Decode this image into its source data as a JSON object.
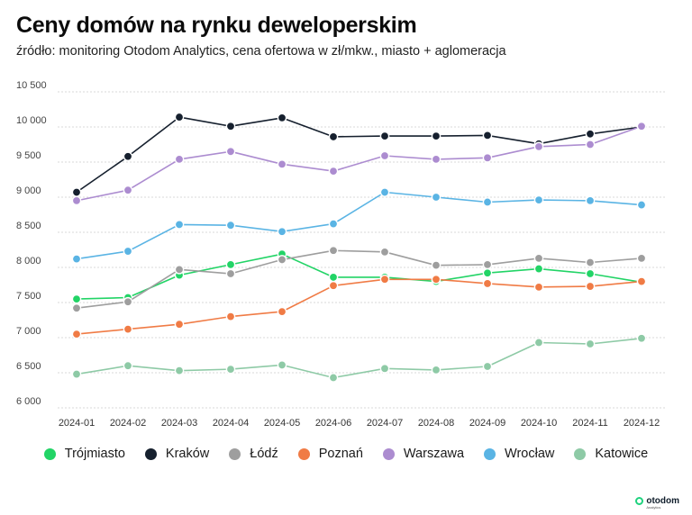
{
  "header": {
    "title": "Ceny domów na rynku deweloperskim",
    "subtitle": "źródło: monitoring Otodom Analytics, cena ofertowa w zł/mkw., miasto + aglomeracja"
  },
  "brand": {
    "name": "otodom",
    "sub": "Analytics"
  },
  "chart_data": {
    "type": "line",
    "title": "Ceny domów na rynku deweloperskim",
    "subtitle": "źródło: monitoring Otodom Analytics, cena ofertowa w zł/mkw., miasto + aglomeracja",
    "xlabel": "",
    "ylabel": "",
    "ylim": [
      6000,
      10500
    ],
    "yticks": [
      6000,
      6500,
      7000,
      7500,
      8000,
      8500,
      9000,
      9500,
      10000,
      10500
    ],
    "ytick_labels": [
      "6 000",
      "6 500",
      "7 000",
      "7 500",
      "8 000",
      "8 500",
      "9 000",
      "9 500",
      "10 000",
      "10 500"
    ],
    "grid": true,
    "legend_position": "bottom",
    "x": [
      "2024-01",
      "2024-02",
      "2024-03",
      "2024-04",
      "2024-05",
      "2024-06",
      "2024-07",
      "2024-08",
      "2024-09",
      "2024-10",
      "2024-11",
      "2024-12"
    ],
    "series": [
      {
        "name": "Trójmiasto",
        "color": "#22d466",
        "values": [
          7550,
          7570,
          7890,
          8040,
          8190,
          7860,
          7860,
          7800,
          7920,
          7980,
          7910,
          7790
        ]
      },
      {
        "name": "Kraków",
        "color": "#16202e",
        "values": [
          9070,
          9580,
          10140,
          10010,
          10130,
          9860,
          9870,
          9870,
          9880,
          9760,
          9900,
          10000
        ]
      },
      {
        "name": "Łódź",
        "color": "#9e9e9e",
        "values": [
          7420,
          7510,
          7970,
          7910,
          8110,
          8240,
          8220,
          8030,
          8040,
          8130,
          8070,
          8130
        ]
      },
      {
        "name": "Poznań",
        "color": "#f07b45",
        "values": [
          7050,
          7120,
          7190,
          7300,
          7370,
          7740,
          7830,
          7830,
          7770,
          7720,
          7730,
          7800
        ]
      },
      {
        "name": "Warszawa",
        "color": "#ac8cd0",
        "values": [
          8950,
          9100,
          9540,
          9650,
          9470,
          9370,
          9590,
          9540,
          9560,
          9720,
          9750,
          10010
        ]
      },
      {
        "name": "Wrocław",
        "color": "#5ab4e4",
        "values": [
          8120,
          8230,
          8610,
          8600,
          8510,
          8620,
          9070,
          9000,
          8930,
          8960,
          8950,
          8890
        ]
      },
      {
        "name": "Katowice",
        "color": "#8ecaa6",
        "values": [
          6480,
          6600,
          6530,
          6550,
          6610,
          6430,
          6560,
          6540,
          6590,
          6930,
          6910,
          6990
        ]
      }
    ]
  }
}
